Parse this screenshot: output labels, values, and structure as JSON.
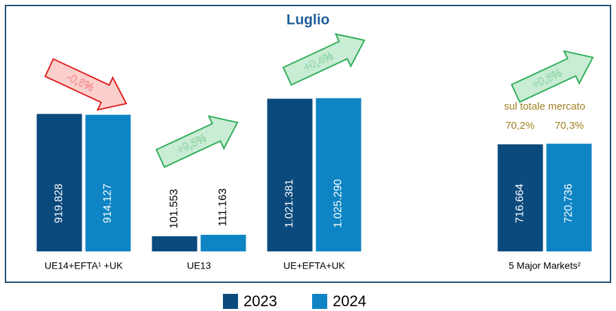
{
  "chart_data": {
    "type": "bar",
    "title": "Luglio",
    "categories": [
      "UE14+EFTA¹ +UK",
      "UE13",
      "UE+EFTA+UK",
      "5 Major Markets²"
    ],
    "series": [
      {
        "name": "2023",
        "color": "#0b4a7d",
        "values": [
          919828,
          101553,
          1021381,
          716664
        ],
        "value_labels": [
          "919.828",
          "101.553",
          "1.021.381",
          "716.664"
        ]
      },
      {
        "name": "2024",
        "color": "#0e84c4",
        "values": [
          914127,
          111163,
          1025290,
          720736
        ],
        "value_labels": [
          "914.127",
          "111.163",
          "1.025.290",
          "720.736"
        ]
      }
    ],
    "ylim": [
      0,
      1100000
    ],
    "arrows": [
      {
        "label": "-0,6%",
        "fill": "#fbd0cc",
        "stroke": "#e02020"
      },
      {
        "label": "+9,5%",
        "fill": "#c9ecd4",
        "stroke": "#2fae5a"
      },
      {
        "label": "+0,4%",
        "fill": "#c9ecd4",
        "stroke": "#2fae5a"
      },
      {
        "label": "+0,6%",
        "fill": "#c9ecd4",
        "stroke": "#2fae5a"
      }
    ],
    "note": "sul totale mercato",
    "shares": [
      "70,2%",
      "70,3%"
    ],
    "note_color": "#a08020"
  }
}
